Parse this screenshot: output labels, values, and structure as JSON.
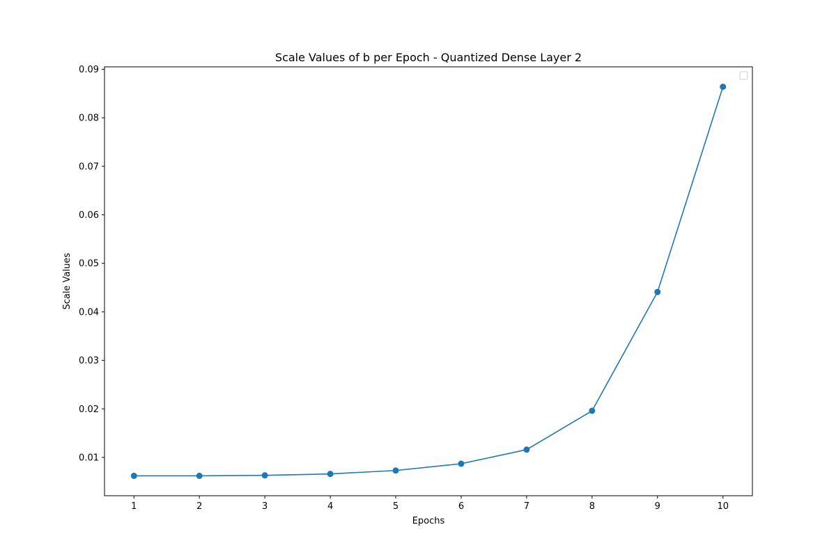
{
  "chart_data": {
    "type": "line",
    "title": "Scale Values of b per Epoch - Quantized Dense Layer 2",
    "xlabel": "Epochs",
    "ylabel": "Scale Values",
    "x": [
      1,
      2,
      3,
      4,
      5,
      6,
      7,
      8,
      9,
      10
    ],
    "series": [
      {
        "values": [
          0.0062,
          0.0062,
          0.0063,
          0.0066,
          0.0073,
          0.0087,
          0.0116,
          0.0196,
          0.0441,
          0.0864
        ],
        "color": "#1f77b4",
        "marker": "circle"
      }
    ],
    "xticks": [
      "1",
      "2",
      "3",
      "4",
      "5",
      "6",
      "7",
      "8",
      "9",
      "10"
    ],
    "yticks": [
      "0.01",
      "0.02",
      "0.03",
      "0.04",
      "0.05",
      "0.06",
      "0.07",
      "0.08",
      "0.09"
    ],
    "ytick_values": [
      0.01,
      0.02,
      0.03,
      0.04,
      0.05,
      0.06,
      0.07,
      0.08,
      0.09
    ],
    "xlim": [
      0.55,
      10.45
    ],
    "ylim": [
      0.0021,
      0.0905
    ],
    "grid": false,
    "legend": {
      "placement": "upper right",
      "entries": []
    }
  }
}
